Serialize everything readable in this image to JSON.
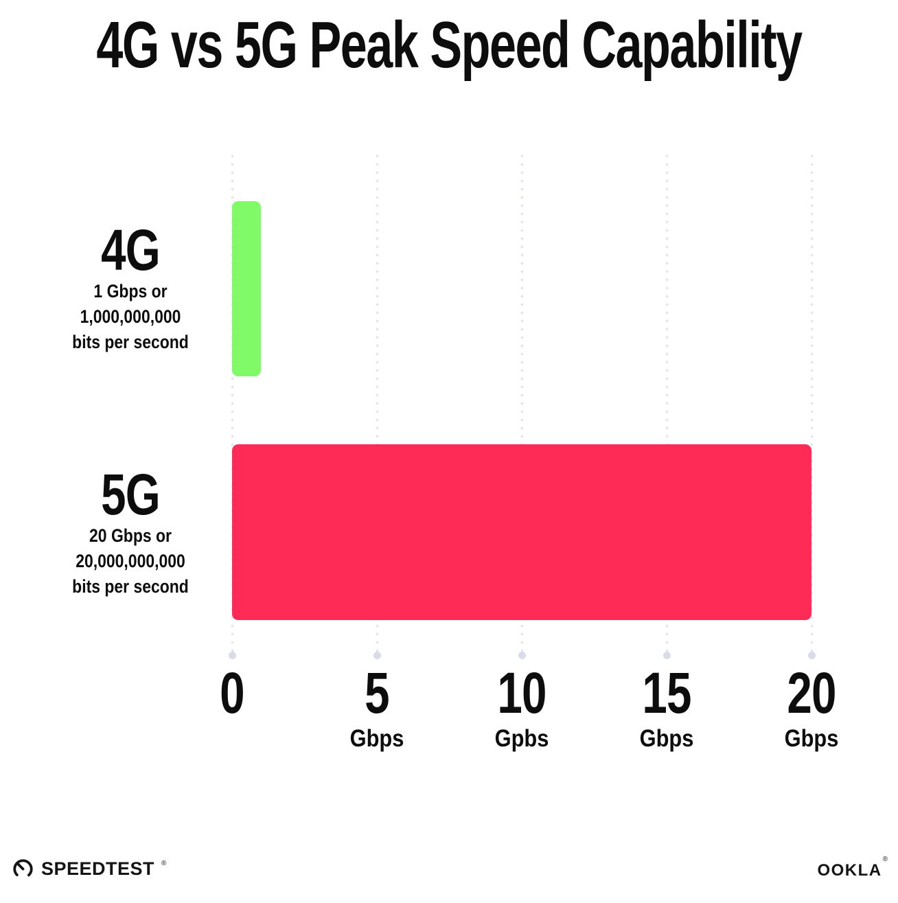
{
  "title": "4G vs 5G Peak Speed Capability",
  "chart_data": {
    "type": "bar",
    "orientation": "horizontal",
    "title": "4G vs 5G Peak Speed Capability",
    "categories": [
      "4G",
      "5G"
    ],
    "values": [
      1,
      20
    ],
    "xlim": [
      0,
      20
    ],
    "grid": "dotted vertical gridlines at each tick, larger end dot at axis",
    "legend": "none",
    "rows": [
      {
        "label": "4G",
        "value": 1,
        "color": "#80FA66",
        "sub1": "1 Gbps or",
        "sub2": "1,000,000,000",
        "sub3": "bits per second"
      },
      {
        "label": "5G",
        "value": 20,
        "color": "#FD2B55",
        "sub1": "20 Gbps or",
        "sub2": "20,000,000,000",
        "sub3": "bits per second"
      }
    ],
    "x_ticks": [
      {
        "value": 0,
        "label": "0",
        "unit": ""
      },
      {
        "value": 5,
        "label": "5",
        "unit": "Gbps"
      },
      {
        "value": 10,
        "label": "10",
        "unit": "Gpbs"
      },
      {
        "value": 15,
        "label": "15",
        "unit": "Gbps"
      },
      {
        "value": 20,
        "label": "20",
        "unit": "Gbps"
      }
    ]
  },
  "footer": {
    "speedtest_label": "SPEEDTEST",
    "speedtest_mark": "®",
    "ookla_label": "OOKLA",
    "ookla_mark": "®"
  },
  "colors": {
    "bar_4g": "#80FA66",
    "bar_5g": "#FD2B55",
    "grid_dot": "#e2e4ee",
    "axis_end_dot": "#d9dce8",
    "text": "#0d0d0d",
    "background": "#ffffff"
  }
}
